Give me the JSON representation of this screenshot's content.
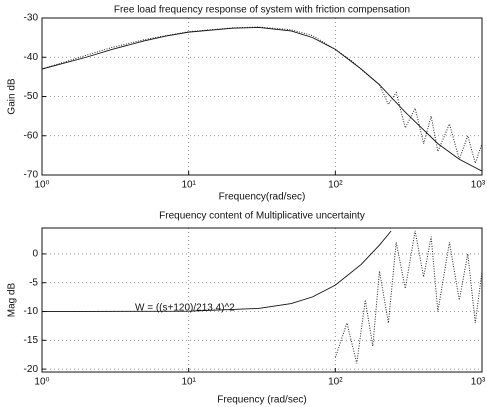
{
  "chart_data": [
    {
      "type": "line",
      "title": "Free load frequency response of system with friction compensation",
      "xlabel": "Frequency(rad/sec)",
      "ylabel": "Gain dB",
      "xscale": "log",
      "grid": true,
      "xlim": [
        1,
        1000
      ],
      "ylim": [
        -70,
        -30
      ],
      "xticks": [
        {
          "value": 1,
          "label": "10⁰"
        },
        {
          "value": 10,
          "label": "10¹"
        },
        {
          "value": 100,
          "label": "10²"
        },
        {
          "value": 1000,
          "label": "10³"
        }
      ],
      "yticks": [
        -70,
        -60,
        -50,
        -40,
        -30
      ],
      "series": [
        {
          "color": "#111111",
          "style": "solid",
          "x": [
            1,
            2,
            3,
            5,
            7,
            10,
            20,
            30,
            50,
            70,
            100,
            150,
            200,
            300,
            500,
            700,
            1000
          ],
          "values": [
            -43,
            -40,
            -38,
            -35.8,
            -34.6,
            -33.6,
            -32.6,
            -32.4,
            -33.3,
            -35,
            -38,
            -43,
            -47,
            -54,
            -62,
            -66,
            -69
          ]
        },
        {
          "color": "#222222",
          "style": "dotted",
          "x": [
            1,
            2,
            3,
            5,
            7,
            10,
            20,
            30,
            50,
            70,
            100,
            130,
            160,
            200,
            230,
            260,
            300,
            350,
            400,
            450,
            500,
            600,
            700,
            800,
            900,
            1000
          ],
          "values": [
            -43,
            -39.5,
            -37.5,
            -35.5,
            -34.5,
            -33.5,
            -32.5,
            -32.3,
            -33,
            -34.5,
            -38,
            -41,
            -44,
            -47,
            -52,
            -49,
            -58,
            -53,
            -62,
            -55,
            -64,
            -57,
            -66,
            -60,
            -67,
            -62
          ]
        }
      ]
    },
    {
      "type": "line",
      "title": "Frequency content of Multiplicative uncertainty",
      "xlabel": "Frequency (rad/sec)",
      "ylabel": "Mag dB",
      "xscale": "log",
      "grid": true,
      "annotation": "W = ((s+120)/213.4)^2",
      "xlim": [
        1,
        1000
      ],
      "ylim": [
        -20.5,
        4.5
      ],
      "xticks": [
        {
          "value": 1,
          "label": "10⁰"
        },
        {
          "value": 10,
          "label": "10¹"
        },
        {
          "value": 100,
          "label": "10²"
        },
        {
          "value": 1000,
          "label": "10³"
        }
      ],
      "yticks": [
        -20,
        -15,
        -10,
        -5,
        0
      ],
      "series": [
        {
          "color": "#111111",
          "style": "solid",
          "x": [
            1,
            10,
            30,
            50,
            70,
            100,
            150,
            200,
            240
          ],
          "values": [
            -10,
            -9.94,
            -9.47,
            -8.61,
            -7.46,
            -5.42,
            -1.83,
            1.54,
            3.98
          ]
        },
        {
          "color": "#222222",
          "style": "dotted",
          "x": [
            100,
            120,
            140,
            160,
            180,
            200,
            230,
            260,
            300,
            350,
            400,
            450,
            500,
            600,
            700,
            800,
            900,
            1000
          ],
          "values": [
            -18,
            -12,
            -19,
            -8,
            -16,
            -3,
            -12,
            2,
            -6,
            4,
            -4,
            3,
            -10,
            2,
            -8,
            0,
            -12,
            -3
          ]
        }
      ]
    }
  ]
}
